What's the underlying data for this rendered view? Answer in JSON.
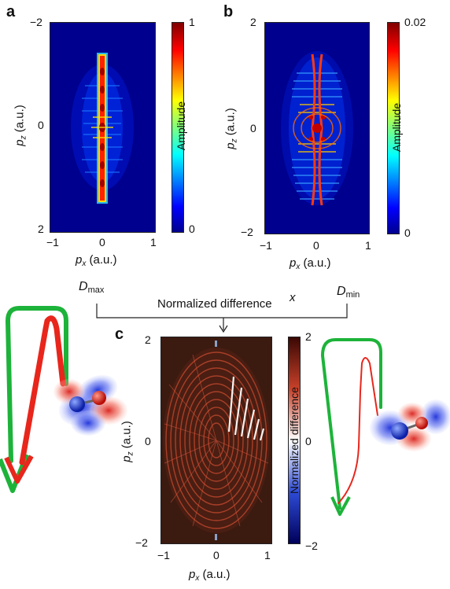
{
  "panel_a": {
    "letter": "a",
    "y_ticks": [
      "−2",
      "0",
      "2"
    ],
    "x_ticks": [
      "−1",
      "0",
      "1"
    ],
    "ylabel_var": "p",
    "ylabel_sub": "z",
    "ylabel_unit": "(a.u.)",
    "xlabel_var": "p",
    "xlabel_sub": "x",
    "xlabel_unit": "(a.u.)",
    "colorbar": {
      "label": "Amplitude",
      "max": "1",
      "min": "0"
    }
  },
  "panel_b": {
    "letter": "b",
    "y_ticks": [
      "2",
      "0",
      "−2"
    ],
    "x_ticks": [
      "−1",
      "0",
      "1"
    ],
    "ylabel_var": "p",
    "ylabel_sub": "z",
    "ylabel_unit": "(a.u.)",
    "xlabel_var": "p",
    "xlabel_sub": "x",
    "xlabel_unit": "(a.u.)",
    "colorbar": {
      "label": "Amplitude",
      "max": "0.02",
      "min": "0"
    }
  },
  "middle": {
    "d_max_main": "D",
    "d_max_sub": "max",
    "d_min_main": "D",
    "d_min_sub": "min",
    "normalized_text": "Normalized difference",
    "x_symbol": "x"
  },
  "panel_c": {
    "letter": "c",
    "y_ticks": [
      "2",
      "0",
      "−2"
    ],
    "x_ticks": [
      "−1",
      "0",
      "1"
    ],
    "ylabel_var": "p",
    "ylabel_sub": "z",
    "ylabel_unit": "(a.u.)",
    "xlabel_var": "p",
    "xlabel_sub": "x",
    "xlabel_unit": "(a.u.)",
    "colorbar": {
      "label": "Normalized difference",
      "max": "2",
      "mid": "0",
      "min": "−2"
    }
  },
  "colors": {
    "jet_dark_blue": "#00008f",
    "red_path": "#e8261c",
    "green_path": "#1db33a",
    "diff_dark": "#2a120c"
  }
}
